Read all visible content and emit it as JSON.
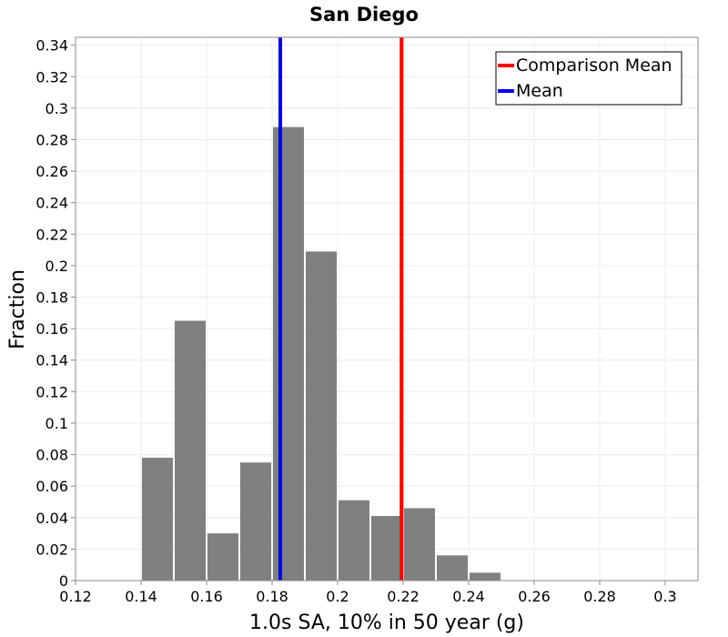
{
  "chart_data": {
    "type": "bar",
    "title": "San Diego",
    "xlabel": "1.0s SA, 10% in 50 year (g)",
    "ylabel": "Fraction",
    "xlim": [
      0.12,
      0.31
    ],
    "ylim": [
      0,
      0.345
    ],
    "grid": true,
    "legend_position": "top-right",
    "bin_width": 0.01,
    "x_ticks": [
      "0.12",
      "0.14",
      "0.16",
      "0.18",
      "0.2",
      "0.22",
      "0.24",
      "0.26",
      "0.28",
      "0.3"
    ],
    "y_ticks": [
      "0",
      "0.02",
      "0.04",
      "0.06",
      "0.08",
      "0.1",
      "0.12",
      "0.14",
      "0.16",
      "0.18",
      "0.2",
      "0.22",
      "0.24",
      "0.26",
      "0.28",
      "0.3",
      "0.32",
      "0.34"
    ],
    "bins": [
      {
        "x": 0.145,
        "value": 0.078
      },
      {
        "x": 0.155,
        "value": 0.165
      },
      {
        "x": 0.165,
        "value": 0.03
      },
      {
        "x": 0.175,
        "value": 0.075
      },
      {
        "x": 0.185,
        "value": 0.288
      },
      {
        "x": 0.195,
        "value": 0.209
      },
      {
        "x": 0.205,
        "value": 0.051
      },
      {
        "x": 0.215,
        "value": 0.041
      },
      {
        "x": 0.225,
        "value": 0.046
      },
      {
        "x": 0.235,
        "value": 0.016
      },
      {
        "x": 0.245,
        "value": 0.005
      }
    ],
    "bar_color": "#808080",
    "lines": [
      {
        "name": "Comparison Mean",
        "x": 0.2195,
        "color": "#ff0000"
      },
      {
        "name": "Mean",
        "x": 0.1825,
        "color": "#0000ff"
      }
    ]
  }
}
